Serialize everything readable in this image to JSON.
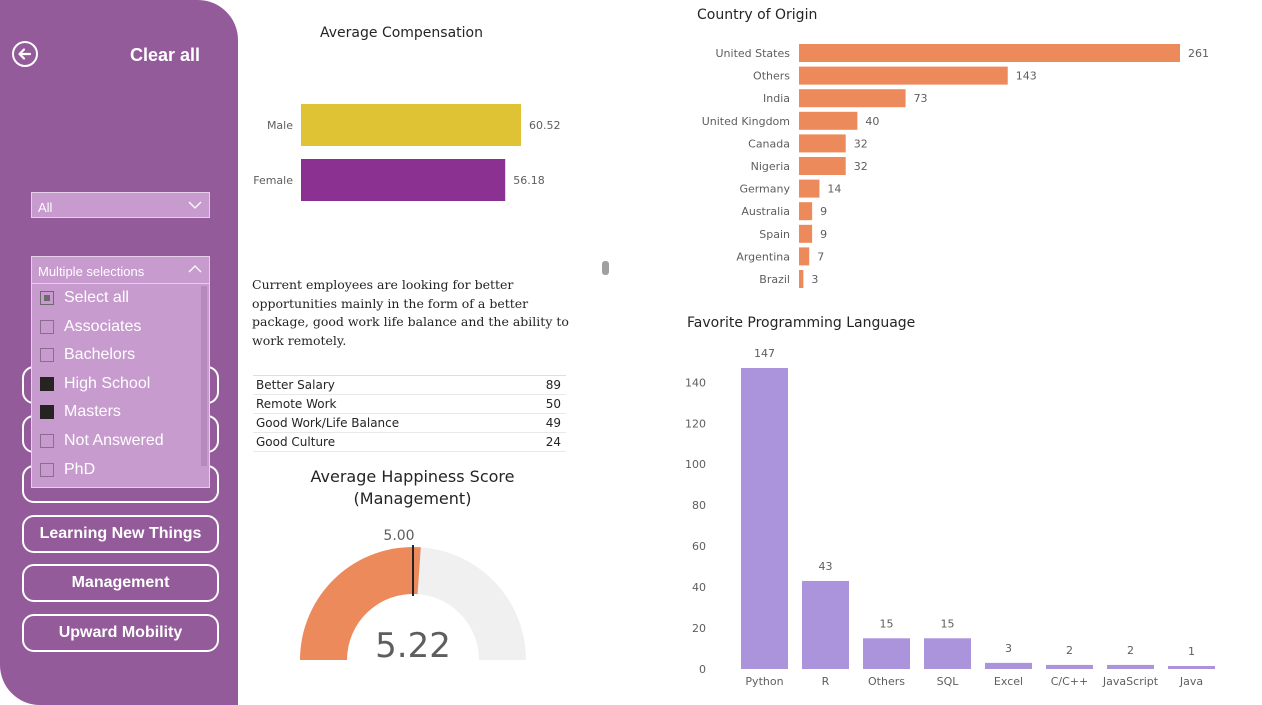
{
  "sidebar": {
    "clear_all": "Clear all",
    "filter1": {
      "value": "All"
    },
    "filter2": {
      "value": "Multiple selections",
      "options": [
        {
          "label": "Select all",
          "state": "partial"
        },
        {
          "label": "Associates",
          "state": "off"
        },
        {
          "label": "Bachelors",
          "state": "off"
        },
        {
          "label": "High School",
          "state": "on"
        },
        {
          "label": "Masters",
          "state": "on"
        },
        {
          "label": "Not Answered",
          "state": "off"
        },
        {
          "label": "PhD",
          "state": "off"
        }
      ]
    },
    "buttons": {
      "learning": "Learning New Things",
      "management": "Management",
      "upward": "Upward Mobility"
    },
    "icons": {
      "back": "arrow-left-circle-icon",
      "chevron": "chevron-icon"
    }
  },
  "compensation": {
    "title": "Average Compensation"
  },
  "insight": "Current employees are looking for better opportunities mainly in the form of a better package, good work life balance and the ability to work remotely.",
  "reasons": [
    {
      "name": "Better Salary",
      "value": "89"
    },
    {
      "name": "Remote Work",
      "value": "50"
    },
    {
      "name": "Good Work/Life Balance",
      "value": "49"
    },
    {
      "name": "Good Culture",
      "value": "24"
    }
  ],
  "happiness": {
    "title_line1": "Average Happiness Score",
    "title_line2": "(Management)"
  },
  "colors": {
    "sidebar": "#935b99",
    "male": "#dfc334",
    "female": "#8a3192",
    "country": "#ec8a5c",
    "language": "#ac94dc",
    "gauge_fill": "#ec8a5c",
    "gauge_track": "#f0f0f0"
  },
  "chart_data": [
    {
      "type": "bar",
      "orientation": "horizontal",
      "title": "Average Compensation",
      "categories": [
        "Male",
        "Female"
      ],
      "values": [
        60.52,
        56.18
      ],
      "value_labels": [
        "60.52",
        "56.18"
      ],
      "xlim": [
        0,
        60.52
      ]
    },
    {
      "type": "bar",
      "orientation": "horizontal",
      "title": "Country of Origin",
      "categories": [
        "United States",
        "Others",
        "India",
        "United Kingdom",
        "Canada",
        "Nigeria",
        "Germany",
        "Australia",
        "Spain",
        "Argentina",
        "Brazil"
      ],
      "values": [
        261,
        143,
        73,
        40,
        32,
        32,
        14,
        9,
        9,
        7,
        3
      ],
      "xlim": [
        0,
        261
      ]
    },
    {
      "type": "bar",
      "title": "Favorite Programming Language",
      "categories": [
        "Python",
        "R",
        "Others",
        "SQL",
        "Excel",
        "C/C++",
        "JavaScript",
        "Java"
      ],
      "values": [
        147,
        43,
        15,
        15,
        3,
        2,
        2,
        1
      ],
      "ylim": [
        0,
        147
      ],
      "yticks": [
        0,
        20,
        40,
        60,
        80,
        100,
        120,
        140
      ],
      "grid": false
    },
    {
      "type": "gauge",
      "title": "Average Happiness Score (Management)",
      "value": 5.22,
      "value_label": "5.22",
      "target": 5.0,
      "target_label": "5.00",
      "min": 0,
      "max": 10
    }
  ]
}
